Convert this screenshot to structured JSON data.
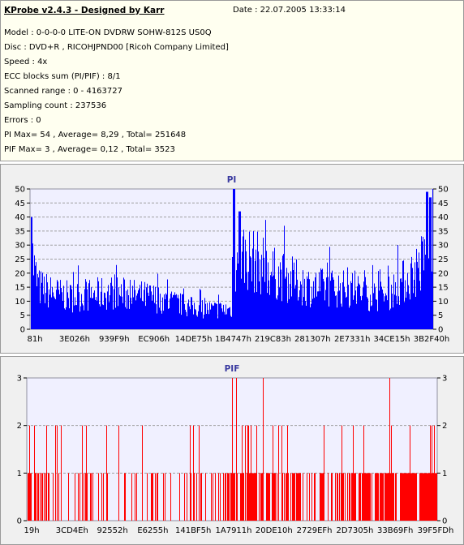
{
  "info": {
    "title": "KProbe v2.4.3 - Designed by Karr",
    "date": "Date : 22.07.2005 13:33:14",
    "lines": [
      "Model : 0-0-0-0 LITE-ON DVDRW SOHW-812S  US0Q",
      "Disc : DVD+R , RICOHJPND00 [Ricoh Company Limited]",
      "Speed : 4x",
      "ECC blocks sum (PI/PIF) : 8/1",
      "Scanned range : 0 - 4163727",
      "Sampling count : 237536",
      "Errors : 0",
      "PI Max= 54 , Average= 8,29 , Total= 251648",
      "PIF Max= 3 , Average= 0,12 , Total= 3523"
    ]
  },
  "chart_data": [
    {
      "type": "area",
      "title": "PI",
      "color": "#0000ff",
      "ylim": [
        0,
        50
      ],
      "yticks": [
        0,
        5,
        10,
        15,
        20,
        25,
        30,
        35,
        40,
        45,
        50
      ],
      "xticks": [
        "81h",
        "3E026h",
        "939F9h",
        "EC906h",
        "14DE75h",
        "1B4747h",
        "219C83h",
        "281307h",
        "2E7331h",
        "34CE15h",
        "3B2F40h"
      ],
      "grid": true,
      "profile_x": [
        0,
        0.01,
        0.02,
        0.05,
        0.1,
        0.15,
        0.2,
        0.25,
        0.3,
        0.35,
        0.4,
        0.45,
        0.5,
        0.501,
        0.53,
        0.55,
        0.58,
        0.6,
        0.65,
        0.7,
        0.75,
        0.8,
        0.85,
        0.88,
        0.9,
        0.94,
        0.97,
        0.99,
        1.0
      ],
      "profile_y": [
        33,
        22,
        17,
        15,
        13,
        14,
        15,
        14,
        13,
        11,
        9,
        8,
        8,
        26,
        30,
        28,
        26,
        23,
        20,
        17,
        17,
        16,
        14,
        13,
        16,
        21,
        26,
        33,
        40
      ],
      "spikes": [
        [
          0.0,
          40
        ],
        [
          0.505,
          50
        ],
        [
          0.52,
          42
        ],
        [
          0.985,
          49
        ],
        [
          0.993,
          47
        ]
      ]
    },
    {
      "type": "bar",
      "title": "PIF",
      "color": "#ff0000",
      "ylim": [
        0,
        3
      ],
      "yticks": [
        0,
        1,
        2,
        3
      ],
      "xticks": [
        "19h",
        "3CD4Eh",
        "92552h",
        "E6255h",
        "141BF5h",
        "1A7911h",
        "20DE10h",
        "2729EFh",
        "2D7305h",
        "33B69Fh",
        "39F5FDh"
      ],
      "grid": true,
      "density_x": [
        0,
        0.1,
        0.2,
        0.25,
        0.3,
        0.35,
        0.4,
        0.45,
        0.5,
        0.6,
        0.7,
        0.8,
        0.9,
        1.0
      ],
      "density_one": [
        0.5,
        0.35,
        0.25,
        0.2,
        0.35,
        0.2,
        0.35,
        0.25,
        0.7,
        0.6,
        0.45,
        0.5,
        0.75,
        0.85
      ],
      "density_two": [
        0.08,
        0.05,
        0.04,
        0.02,
        0.04,
        0.02,
        0.03,
        0.04,
        0.15,
        0.06,
        0.04,
        0.05,
        0.08,
        0.1
      ],
      "threes": [
        0.5,
        0.51,
        0.575,
        0.885
      ]
    }
  ]
}
